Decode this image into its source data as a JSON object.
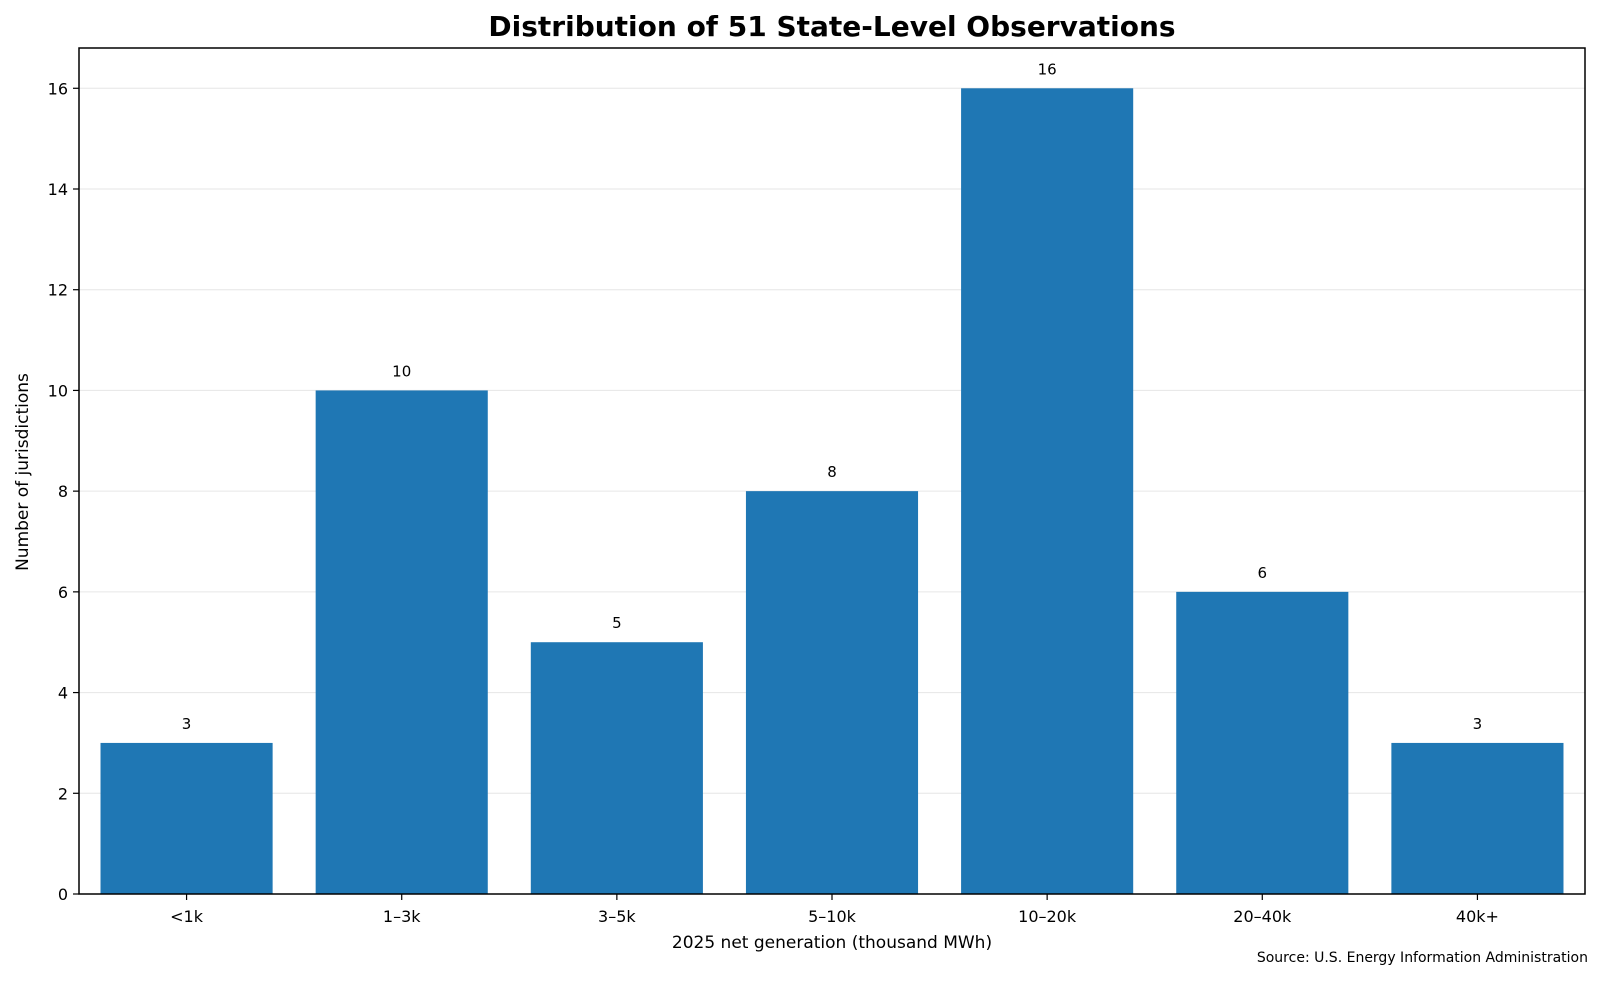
{
  "chart_data": {
    "type": "bar",
    "title": "Distribution of 51 State-Level Observations",
    "xlabel": "2025 net generation (thousand MWh)",
    "ylabel": "Number of jurisdictions",
    "categories": [
      "<1k",
      "1–3k",
      "3–5k",
      "5–10k",
      "10–20k",
      "20–40k",
      "40k+"
    ],
    "values": [
      3,
      10,
      5,
      8,
      16,
      6,
      3
    ],
    "ylim": [
      0,
      16.8
    ],
    "yticks": [
      0,
      2,
      4,
      6,
      8,
      10,
      12,
      14,
      16
    ],
    "grid": "horizontal",
    "bar_color": "#1f77b4",
    "show_data_labels": true,
    "source": "Source: U.S. Energy Information Administration"
  }
}
